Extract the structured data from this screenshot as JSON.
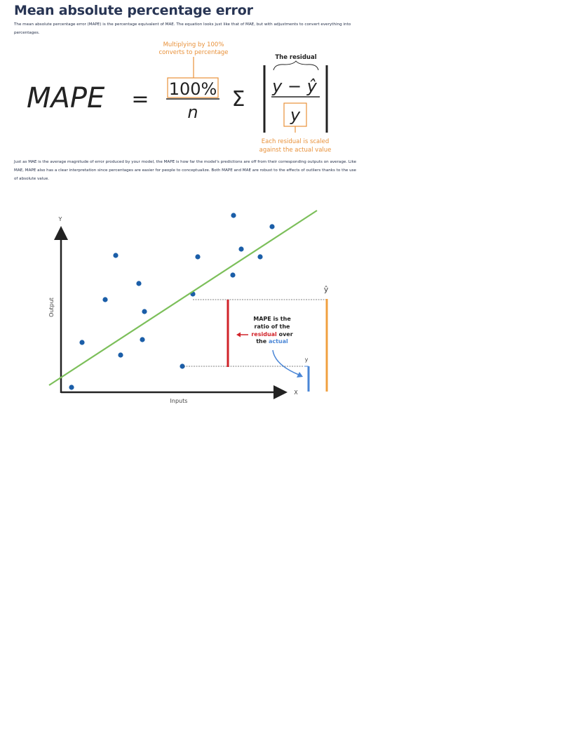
{
  "article": {
    "title": "Mean absolute percentage error",
    "intro": "The mean absolute percentage error (MAPE) is the percentage equivalent of MAE. The equation looks just like that of MAE, but with adjustments to convert everything into percentages.",
    "body": "Just as MAE is the average magnitude of error produced by your model, the MAPE is how far the model's predictions are off from their corresponding outputs on average. Like MAE, MAPE also has a clear interpretation since percentages are easier for people to conceptualize. Both MAPE and MAE are robust to the effects of outliers thanks to the use of absolute value."
  },
  "formula": {
    "lhs": "MAPE",
    "equals": "=",
    "numerator": "100%",
    "denominator": "n",
    "sigma": "Σ",
    "residual_num": "y − ŷ",
    "residual_den": "y",
    "annotation_top_line1": "Multiplying by 100%",
    "annotation_top_line2": "converts to percentage",
    "annotation_residual": "The residual",
    "annotation_bottom_line1": "Each residual is scaled",
    "annotation_bottom_line2": "against the actual value",
    "accent_color": "#e8913a"
  },
  "chart_data": {
    "type": "scatter",
    "xlabel": "Inputs",
    "ylabel": "Output",
    "x_axis_letter": "X",
    "y_axis_letter": "Y",
    "yhat_label": "ŷ",
    "y_label": "y",
    "annotation": {
      "line1": "MAPE is the",
      "line2": "ratio of the",
      "residual_word": "residual",
      "over_word": " over",
      "the_word": "the ",
      "actual_word": "actual"
    },
    "colors": {
      "points": "#1b5ea8",
      "regression": "#7cbf5a",
      "residual": "#d1232a",
      "prediction": "#f0a040",
      "actual": "#4a86d6",
      "axis": "#222222"
    }
  }
}
